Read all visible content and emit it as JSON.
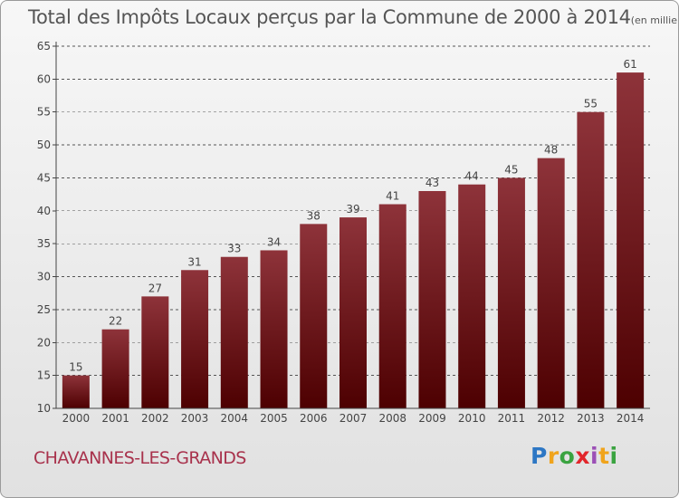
{
  "title": "Total des Impôts Locaux perçus par la Commune de 2000 à 2014",
  "title_unit": "(en milliers d'€)",
  "commune": "CHAVANNES-LES-GRANDS",
  "logo": {
    "text": "Proxiti",
    "letters": [
      {
        "char": "P",
        "color": "#2d77c4"
      },
      {
        "char": "r",
        "color": "#f0a41c"
      },
      {
        "char": "o",
        "color": "#3aa340"
      },
      {
        "char": "x",
        "color": "#e2262b"
      },
      {
        "char": "i",
        "color": "#9b4fb6"
      },
      {
        "char": "t",
        "color": "#f0a41c"
      },
      {
        "char": "i",
        "color": "#3aa340"
      }
    ]
  },
  "colors": {
    "bar_top": "#8e333a",
    "bar_bottom": "#4d0001",
    "axis": "#444444",
    "grid": "#555555"
  },
  "chart_data": {
    "type": "bar",
    "title": "Total des Impôts Locaux perçus par la Commune de 2000 à 2014",
    "xlabel": "",
    "ylabel": "",
    "categories": [
      "2000",
      "2001",
      "2002",
      "2003",
      "2004",
      "2005",
      "2006",
      "2007",
      "2008",
      "2009",
      "2010",
      "2011",
      "2012",
      "2013",
      "2014"
    ],
    "values": [
      15,
      22,
      27,
      31,
      33,
      34,
      38,
      39,
      41,
      43,
      44,
      45,
      48,
      55,
      61
    ],
    "ylim": [
      10,
      65
    ],
    "yticks": [
      10,
      15,
      20,
      25,
      30,
      35,
      40,
      45,
      50,
      55,
      60,
      65
    ],
    "grid": true
  }
}
